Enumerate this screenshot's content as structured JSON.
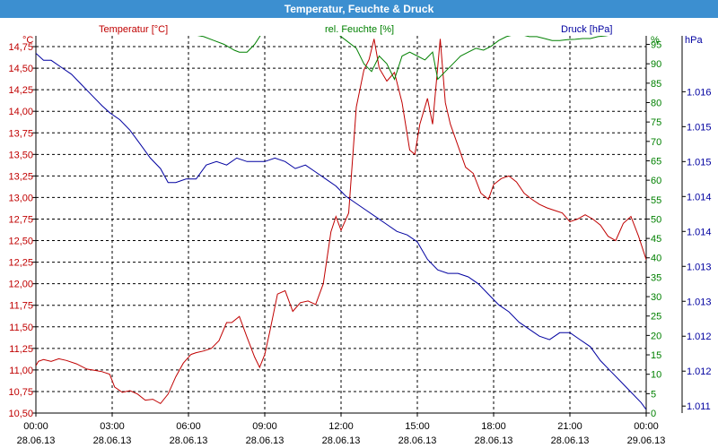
{
  "title": "Temperatur, Feuchte & Druck",
  "colors": {
    "title_bar": "#3c8fd0",
    "temperature": "#c00000",
    "humidity": "#008000",
    "pressure": "#0000a0",
    "axis_text": "#000000"
  },
  "chart_data": {
    "type": "line",
    "title": "Temperatur, Feuchte & Druck",
    "grid": true,
    "x_ticks": [
      {
        "time": "00:00",
        "date": "28.06.13"
      },
      {
        "time": "03:00",
        "date": "28.06.13"
      },
      {
        "time": "06:00",
        "date": "28.06.13"
      },
      {
        "time": "09:00",
        "date": "28.06.13"
      },
      {
        "time": "12:00",
        "date": "28.06.13"
      },
      {
        "time": "15:00",
        "date": "28.06.13"
      },
      {
        "time": "18:00",
        "date": "28.06.13"
      },
      {
        "time": "21:00",
        "date": "28.06.13"
      },
      {
        "time": "00:00",
        "date": "29.06.13"
      }
    ],
    "axes": {
      "temperature": {
        "label": "Temperatur [°C]",
        "unit": "°C",
        "range": [
          10.5,
          14.875
        ],
        "ticks": [
          "10,50",
          "10,75",
          "11,00",
          "11,25",
          "11,50",
          "11,75",
          "12,00",
          "12,25",
          "12,50",
          "12,75",
          "13,00",
          "13,25",
          "13,50",
          "13,75",
          "14,00",
          "14,25",
          "14,50",
          "14,75"
        ]
      },
      "humidity": {
        "label": "rel. Feuchte [%]",
        "unit": "%",
        "range": [
          0,
          97.2
        ],
        "ticks": [
          "0",
          "5",
          "10",
          "15",
          "20",
          "25",
          "30",
          "35",
          "40",
          "45",
          "50",
          "55",
          "60",
          "65",
          "70",
          "75",
          "80",
          "85",
          "90",
          "95"
        ]
      },
      "pressure": {
        "label": "Druck [hPa]",
        "unit": "hPa",
        "range": [
          1011.0,
          1016.4
        ],
        "ticks": [
          "1.011",
          "1.012",
          "1.012",
          "1.013",
          "1.013",
          "1.014",
          "1.014",
          "1.015",
          "1.015",
          "1.016"
        ],
        "tick_values": [
          1011.1,
          1011.6,
          1012.1,
          1012.6,
          1013.1,
          1013.6,
          1014.1,
          1014.6,
          1015.1,
          1015.6
        ]
      }
    },
    "series": [
      {
        "name": "Temperatur [°C]",
        "axis": "temperature",
        "x": [
          0,
          0.1,
          0.3,
          0.6,
          0.9,
          1.2,
          1.6,
          2.0,
          2.4,
          2.6,
          2.9,
          3.1,
          3.4,
          3.7,
          4.0,
          4.3,
          4.6,
          4.9,
          5.2,
          5.5,
          5.8,
          6.1,
          6.3,
          6.6,
          6.9,
          7.2,
          7.5,
          7.7,
          8.0,
          8.3,
          8.6,
          8.8,
          9.0,
          9.2,
          9.5,
          9.8,
          10.1,
          10.4,
          10.7,
          11.0,
          11.3,
          11.6,
          11.8,
          12.0,
          12.3,
          12.6,
          12.9,
          13.1,
          13.3,
          13.5,
          13.8,
          14.1,
          14.4,
          14.7,
          14.9,
          15.1,
          15.4,
          15.6,
          15.9,
          16.1,
          16.3,
          16.6,
          16.9,
          17.2,
          17.5,
          17.8,
          18.0,
          18.3,
          18.6,
          18.9,
          19.2,
          19.5,
          19.8,
          20.1,
          20.4,
          20.7,
          21.0,
          21.3,
          21.6,
          21.9,
          22.2,
          22.5,
          22.8,
          23.1,
          23.4,
          23.7,
          24.0
        ],
        "values": [
          11.05,
          11.1,
          11.12,
          11.1,
          11.13,
          11.11,
          11.07,
          11.01,
          10.99,
          10.98,
          10.95,
          10.8,
          10.74,
          10.76,
          10.72,
          10.65,
          10.66,
          10.61,
          10.72,
          10.92,
          11.08,
          11.18,
          11.2,
          11.22,
          11.25,
          11.34,
          11.55,
          11.55,
          11.62,
          11.38,
          11.15,
          11.03,
          11.18,
          11.45,
          11.88,
          11.92,
          11.68,
          11.78,
          11.8,
          11.76,
          12.0,
          12.6,
          12.78,
          12.62,
          12.82,
          14.05,
          14.48,
          14.6,
          14.84,
          14.5,
          14.35,
          14.45,
          14.1,
          13.55,
          13.5,
          13.85,
          14.15,
          13.85,
          14.84,
          14.1,
          13.85,
          13.6,
          13.35,
          13.28,
          13.05,
          12.98,
          13.15,
          13.22,
          13.25,
          13.18,
          13.05,
          12.98,
          12.92,
          12.88,
          12.85,
          12.82,
          12.72,
          12.75,
          12.8,
          12.75,
          12.68,
          12.55,
          12.5,
          12.7,
          12.78,
          12.55,
          12.28
        ]
      },
      {
        "name": "rel. Feuchte [%]",
        "axis": "humidity",
        "x": [
          5.8,
          6.2,
          6.6,
          7.0,
          7.4,
          7.8,
          8.0,
          8.3,
          8.6,
          8.9,
          11.8,
          12.2,
          12.6,
          12.9,
          13.2,
          13.5,
          13.8,
          14.1,
          14.4,
          14.7,
          15.0,
          15.3,
          15.6,
          15.8,
          16.1,
          16.4,
          16.7,
          17.0,
          17.3,
          17.6,
          17.9,
          18.2,
          18.5,
          18.8,
          19.1,
          19.4,
          19.7,
          20.0,
          20.3,
          20.6,
          20.9,
          21.2,
          21.5,
          21.8,
          22.1,
          22.4,
          22.7
        ],
        "values": [
          98,
          97.5,
          97,
          96,
          95,
          93.5,
          93,
          93,
          95,
          98,
          98,
          96,
          94,
          90,
          88,
          92,
          90,
          86,
          92,
          93,
          92,
          91,
          93,
          86,
          88,
          90,
          92,
          93,
          94,
          93.5,
          94.5,
          96,
          97,
          97.5,
          97.5,
          97,
          97,
          96.5,
          96,
          96,
          96.2,
          96.3,
          96.5,
          96.5,
          97,
          97.2,
          97.5
        ]
      },
      {
        "name": "Druck [hPa]",
        "axis": "pressure",
        "x": [
          0,
          0.3,
          0.6,
          1.0,
          1.4,
          1.8,
          2.2,
          2.6,
          2.9,
          3.3,
          3.7,
          4.1,
          4.5,
          4.9,
          5.2,
          5.5,
          5.9,
          6.3,
          6.7,
          7.1,
          7.5,
          7.9,
          8.3,
          8.7,
          9.0,
          9.4,
          9.8,
          10.2,
          10.6,
          11.0,
          11.4,
          11.8,
          12.2,
          12.6,
          13.0,
          13.4,
          13.8,
          14.2,
          14.6,
          15.0,
          15.4,
          15.8,
          16.2,
          16.6,
          17.0,
          17.4,
          17.8,
          18.2,
          18.6,
          19.0,
          19.4,
          19.8,
          20.2,
          20.6,
          21.0,
          21.4,
          21.8,
          22.2,
          22.6,
          23.0,
          23.4,
          23.8,
          24.0
        ],
        "values": [
          1016.15,
          1016.05,
          1016.05,
          1015.95,
          1015.85,
          1015.7,
          1015.55,
          1015.4,
          1015.3,
          1015.2,
          1015.05,
          1014.85,
          1014.65,
          1014.5,
          1014.3,
          1014.3,
          1014.35,
          1014.35,
          1014.55,
          1014.6,
          1014.55,
          1014.65,
          1014.6,
          1014.6,
          1014.6,
          1014.65,
          1014.6,
          1014.5,
          1014.55,
          1014.45,
          1014.35,
          1014.25,
          1014.1,
          1014.0,
          1013.9,
          1013.8,
          1013.7,
          1013.6,
          1013.55,
          1013.45,
          1013.2,
          1013.05,
          1013.0,
          1013.0,
          1012.95,
          1012.85,
          1012.7,
          1012.55,
          1012.45,
          1012.3,
          1012.2,
          1012.1,
          1012.05,
          1012.15,
          1012.15,
          1012.05,
          1011.95,
          1011.75,
          1011.6,
          1011.45,
          1011.3,
          1011.15,
          1011.05
        ]
      }
    ]
  }
}
